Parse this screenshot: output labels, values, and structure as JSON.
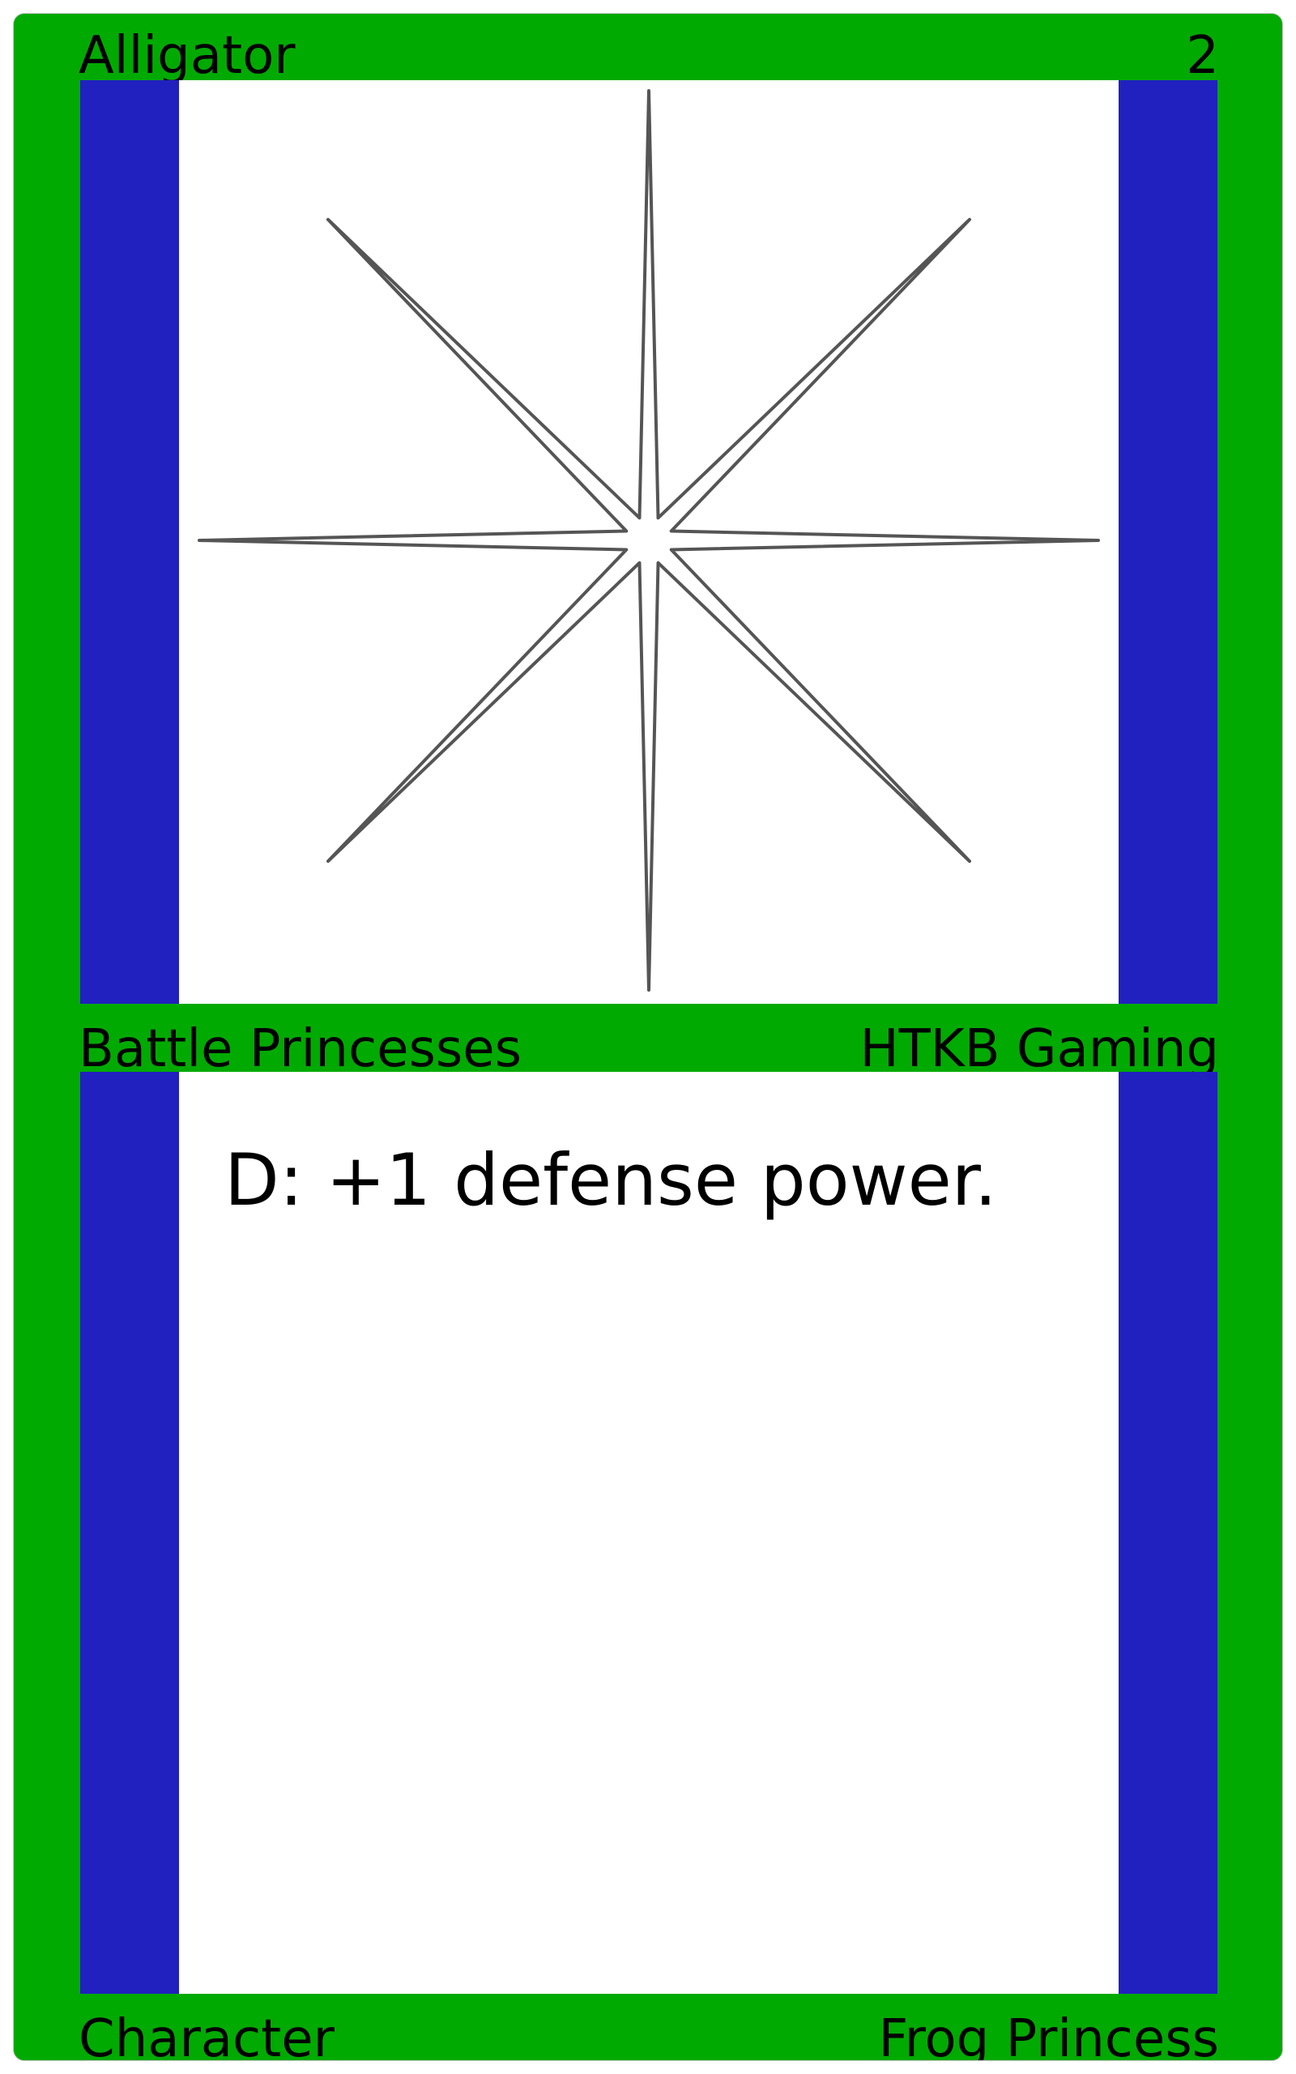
{
  "card": {
    "name": "Alligator",
    "cost": "2",
    "set_name": "Battle Princesses",
    "publisher": "HTKB Gaming",
    "ability_text": "D: +1 defense power.",
    "type": "Character",
    "subtype": "Frog Princess",
    "art_icon": "eight-point-star-icon"
  },
  "colors": {
    "frame": "#00aa00",
    "panel_side": "#2121bf",
    "panel_inner": "#ffffff",
    "art_stroke": "#555555"
  }
}
